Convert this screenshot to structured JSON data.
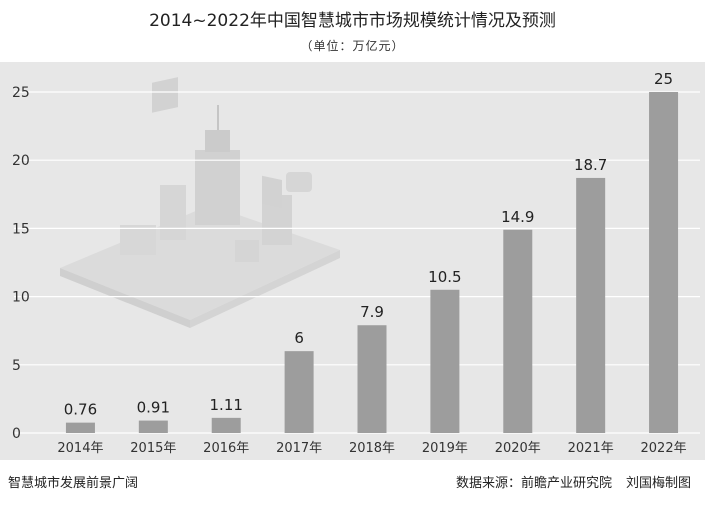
{
  "chart_data": {
    "type": "bar",
    "title": "2014~2022年中国智慧城市市场规模统计情况及预测",
    "subtitle": "（单位：万亿元）",
    "xlabel": "",
    "ylabel": "",
    "categories": [
      "2014年",
      "2015年",
      "2016年",
      "2017年",
      "2018年",
      "2019年",
      "2020年",
      "2021年",
      "2022年"
    ],
    "values": [
      0.76,
      0.91,
      1.11,
      6,
      7.9,
      10.5,
      14.9,
      18.7,
      25
    ],
    "data_labels": [
      "0.76",
      "0.91",
      "1.11",
      "6",
      "7.9",
      "10.5",
      "14.9",
      "18.7",
      "25"
    ],
    "ylim": [
      0,
      25
    ],
    "yticks": [
      0,
      5,
      10,
      15,
      20,
      25
    ],
    "grid": true,
    "legend": "none",
    "colors": {
      "bar": "#9d9d9d",
      "background": "#e7e7e7",
      "grid": "#ffffff",
      "text": "#222222"
    }
  },
  "footer": {
    "brand": "智慧城市发展前景广阔",
    "source": "数据来源：前瞻产业研究院",
    "author": "刘国梅制图"
  }
}
